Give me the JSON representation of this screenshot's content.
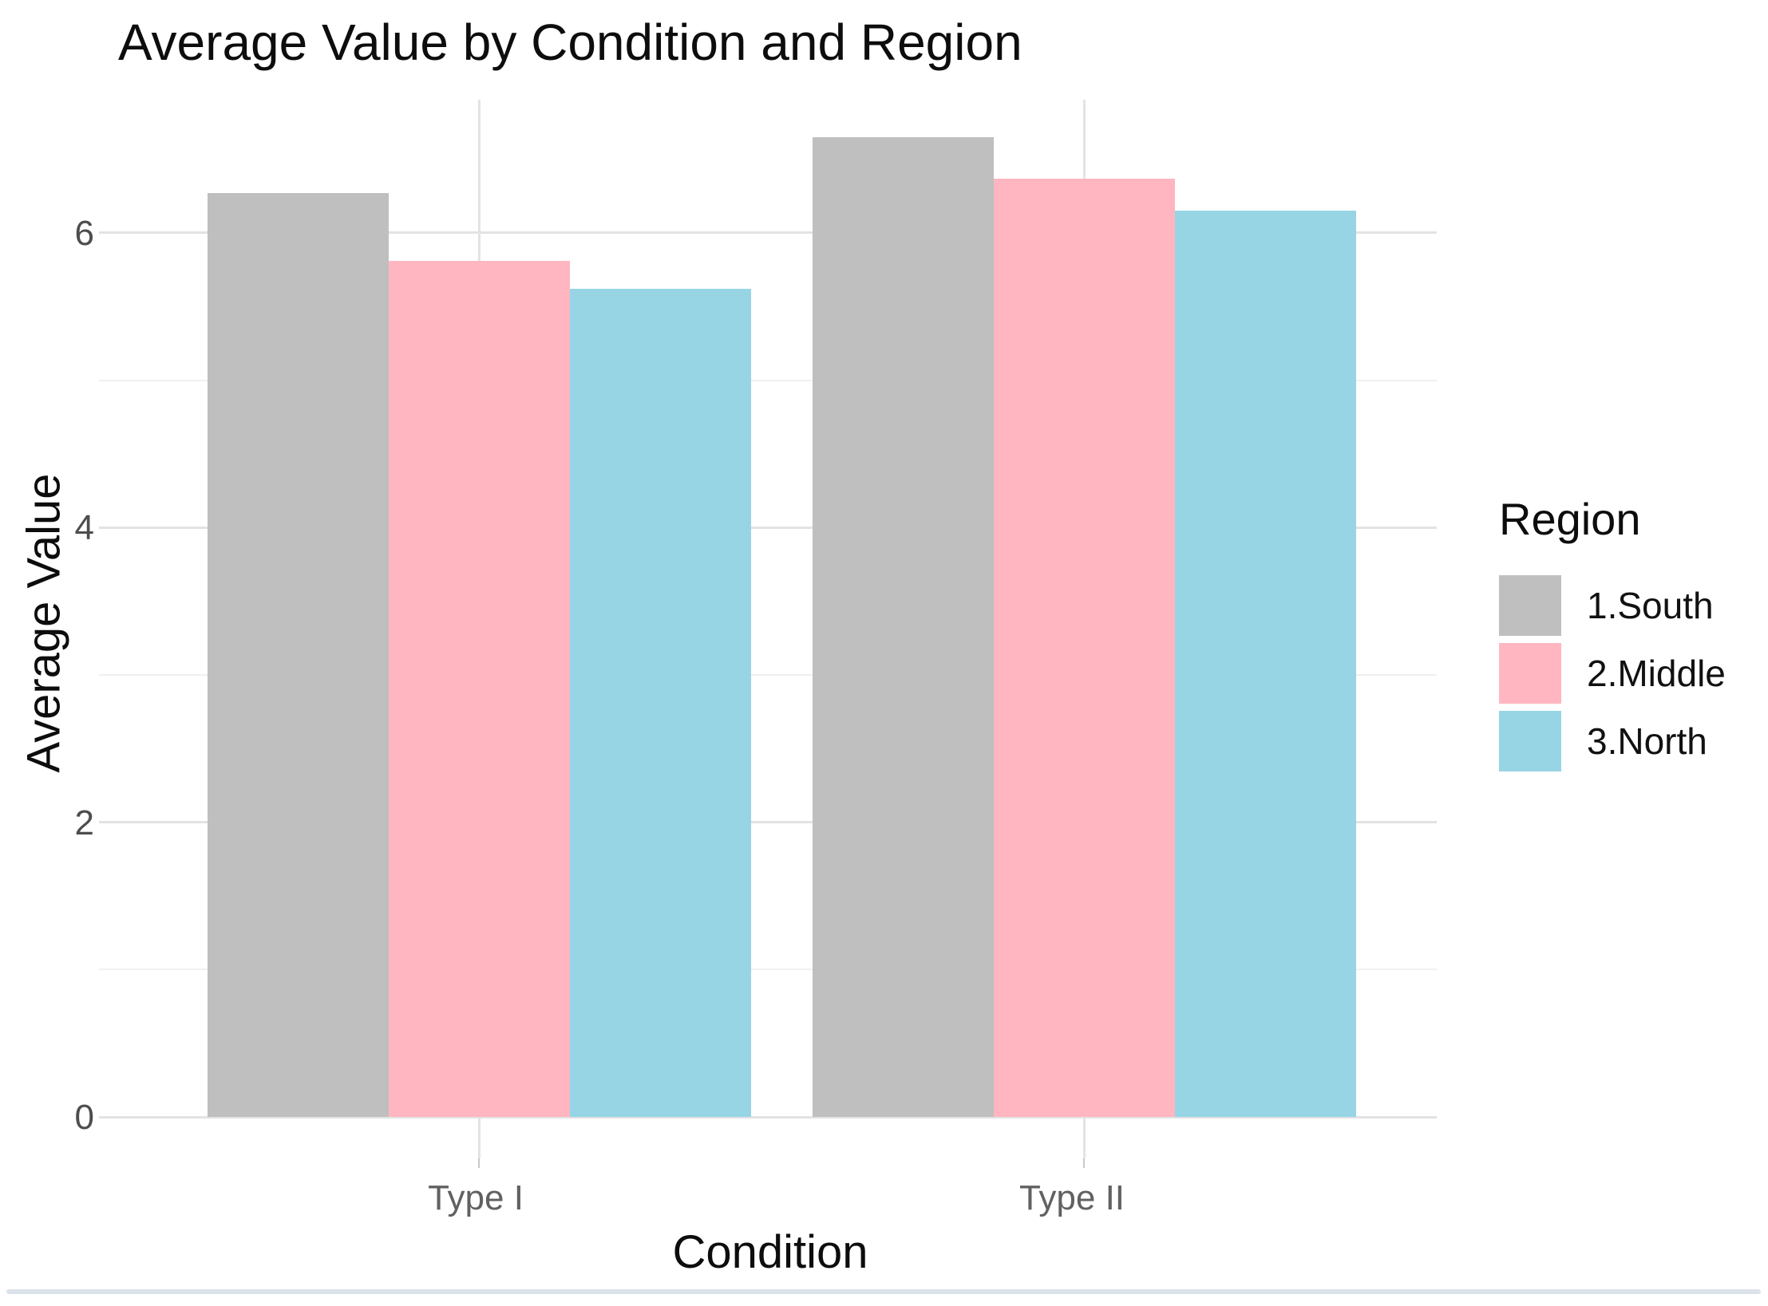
{
  "chart_data": {
    "type": "bar",
    "title": "Average Value by Condition and Region",
    "xlabel": "Condition",
    "ylabel": "Average Value",
    "categories": [
      "Type I",
      "Type II"
    ],
    "series": [
      {
        "name": "1.South",
        "color": "#bfbfbf",
        "values": [
          6.27,
          6.65
        ]
      },
      {
        "name": "2.Middle",
        "color": "#ffb6c1",
        "values": [
          5.81,
          6.37
        ]
      },
      {
        "name": "3.North",
        "color": "#97d5e5",
        "values": [
          5.62,
          6.15
        ]
      }
    ],
    "legend_title": "Region",
    "legend_position": "right",
    "ylim": [
      0,
      7
    ],
    "yticks": [
      0,
      2,
      4,
      6
    ],
    "yticks_minor": [
      1,
      3,
      5
    ],
    "grid": "horizontal major+minor, vertical major at category centers",
    "background": "#ffffff",
    "grid_major_color": "#e3e3e3",
    "grid_minor_color": "#f0f0f0",
    "axis_text_color": "#4d4d4d"
  }
}
